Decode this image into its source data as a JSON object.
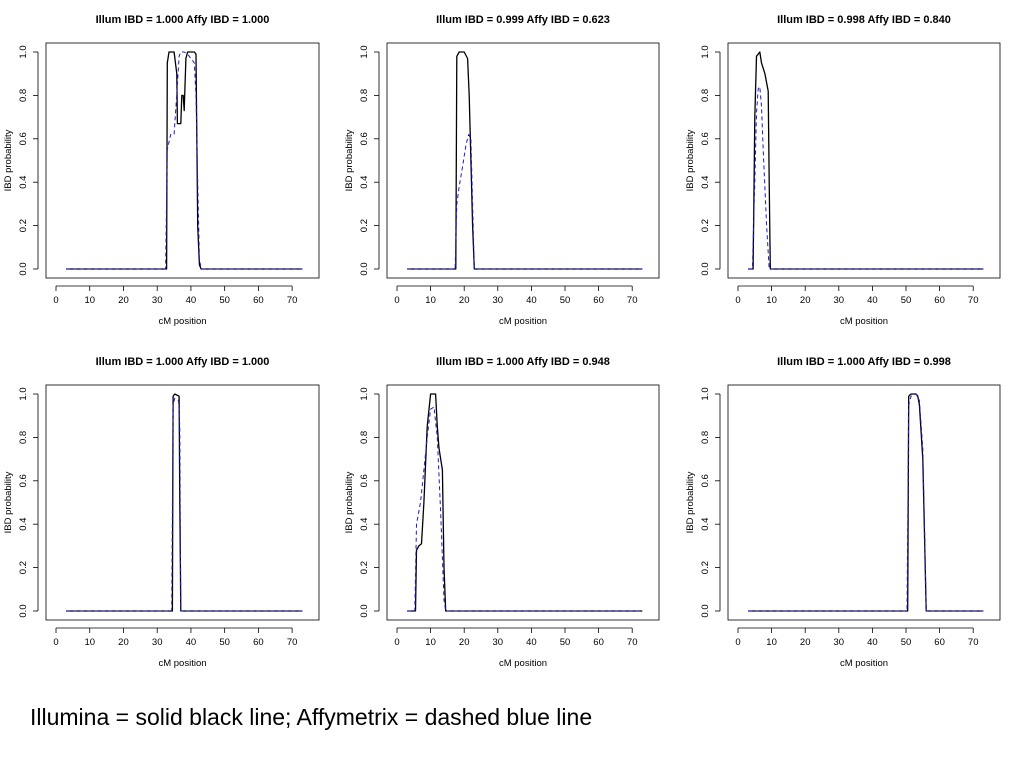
{
  "caption": "Illumina = solid black line; Affymetrix = dashed blue line",
  "colors": {
    "illumina": "#000000",
    "affymetrix": "#1a1ad6",
    "axis": "#000000"
  },
  "chart_data": [
    {
      "type": "line",
      "title": "Illum IBD = 1.000  Affy IBD = 1.000",
      "xlabel": "cM position",
      "ylabel": "IBD probability",
      "xlim": [
        0,
        75
      ],
      "ylim": [
        0,
        1
      ],
      "xticks": [
        0,
        10,
        20,
        30,
        40,
        50,
        60,
        70
      ],
      "yticks": [
        0.0,
        0.2,
        0.4,
        0.6,
        0.8,
        1.0
      ],
      "series": [
        {
          "style": "solid",
          "color": "#000000",
          "x": [
            3,
            32.8,
            33,
            33.5,
            35,
            35.8,
            36,
            37,
            37.3,
            37.7,
            38,
            38.5,
            39,
            40,
            41,
            41.5,
            42,
            42.5,
            43,
            73
          ],
          "y": [
            0,
            0,
            0.95,
            1,
            1,
            0.9,
            0.67,
            0.67,
            0.8,
            0.8,
            0.73,
            0.97,
            1,
            1,
            1,
            0.99,
            0.2,
            0.02,
            0,
            0
          ]
        },
        {
          "style": "dashed",
          "color": "#1a1ad6",
          "x": [
            3,
            32.5,
            33,
            34,
            35,
            36,
            36.5,
            37,
            38,
            39,
            40,
            41,
            41.5,
            42,
            42.5,
            43,
            73
          ],
          "y": [
            0,
            0,
            0.55,
            0.62,
            0.62,
            0.85,
            0.98,
            1,
            1,
            0.99,
            0.97,
            0.95,
            0.8,
            0.4,
            0.05,
            0,
            0
          ]
        }
      ]
    },
    {
      "type": "line",
      "title": "Illum IBD = 0.999  Affy IBD = 0.623",
      "xlabel": "cM position",
      "ylabel": "IBD probability",
      "xlim": [
        0,
        75
      ],
      "ylim": [
        0,
        1
      ],
      "xticks": [
        0,
        10,
        20,
        30,
        40,
        50,
        60,
        70
      ],
      "yticks": [
        0.0,
        0.2,
        0.4,
        0.6,
        0.8,
        1.0
      ],
      "series": [
        {
          "style": "solid",
          "color": "#000000",
          "x": [
            3,
            17.5,
            17.8,
            18.5,
            20,
            21,
            21.5,
            22,
            22.5,
            23,
            73
          ],
          "y": [
            0,
            0,
            0.98,
            1,
            1,
            0.97,
            0.8,
            0.5,
            0.2,
            0,
            0
          ]
        },
        {
          "style": "dashed",
          "color": "#1a1ad6",
          "x": [
            3,
            17.3,
            17.8,
            18.5,
            19.5,
            20.5,
            21.3,
            22,
            22.5,
            23,
            73
          ],
          "y": [
            0,
            0,
            0.3,
            0.38,
            0.47,
            0.57,
            0.62,
            0.6,
            0.3,
            0,
            0
          ]
        }
      ]
    },
    {
      "type": "line",
      "title": "Illum IBD = 0.998  Affy IBD = 0.840",
      "xlabel": "cM position",
      "ylabel": "IBD probability",
      "xlim": [
        0,
        75
      ],
      "ylim": [
        0,
        1
      ],
      "xticks": [
        0,
        10,
        20,
        30,
        40,
        50,
        60,
        70
      ],
      "yticks": [
        0.0,
        0.2,
        0.4,
        0.6,
        0.8,
        1.0
      ],
      "series": [
        {
          "style": "solid",
          "color": "#000000",
          "x": [
            3,
            4.5,
            5,
            5.5,
            6.5,
            7,
            8,
            9,
            9.3,
            9.6,
            73
          ],
          "y": [
            0,
            0,
            0.7,
            0.98,
            1,
            0.95,
            0.9,
            0.82,
            0.4,
            0,
            0
          ]
        },
        {
          "style": "dashed",
          "color": "#1a1ad6",
          "x": [
            3,
            4.3,
            5,
            5.5,
            6,
            6.5,
            7,
            7.5,
            8.5,
            9.3,
            73
          ],
          "y": [
            0,
            0,
            0.4,
            0.72,
            0.83,
            0.84,
            0.75,
            0.55,
            0.2,
            0,
            0
          ]
        }
      ]
    },
    {
      "type": "line",
      "title": "Illum IBD = 1.000  Affy IBD = 1.000",
      "xlabel": "cM position",
      "ylabel": "IBD probability",
      "xlim": [
        0,
        75
      ],
      "ylim": [
        0,
        1
      ],
      "xticks": [
        0,
        10,
        20,
        30,
        40,
        50,
        60,
        70
      ],
      "yticks": [
        0.0,
        0.2,
        0.4,
        0.6,
        0.8,
        1.0
      ],
      "series": [
        {
          "style": "solid",
          "color": "#000000",
          "x": [
            3,
            34.5,
            34.7,
            35.2,
            36.5,
            36.7,
            37,
            73
          ],
          "y": [
            0,
            0,
            0.99,
            1,
            0.99,
            0.5,
            0,
            0
          ]
        },
        {
          "style": "dashed",
          "color": "#1a1ad6",
          "x": [
            3,
            34.3,
            34.7,
            35.2,
            36.3,
            36.7,
            37,
            73
          ],
          "y": [
            0,
            0,
            0.95,
            0.98,
            0.97,
            0.85,
            0,
            0
          ]
        }
      ]
    },
    {
      "type": "line",
      "title": "Illum IBD = 1.000  Affy IBD = 0.948",
      "xlabel": "cM position",
      "ylabel": "IBD probability",
      "xlim": [
        0,
        75
      ],
      "ylim": [
        0,
        1
      ],
      "xticks": [
        0,
        10,
        20,
        30,
        40,
        50,
        60,
        70
      ],
      "yticks": [
        0.0,
        0.2,
        0.4,
        0.6,
        0.8,
        1.0
      ],
      "series": [
        {
          "style": "solid",
          "color": "#000000",
          "x": [
            3,
            5.5,
            5.8,
            6.5,
            7.3,
            8,
            9,
            10,
            11.5,
            12,
            12.5,
            13.5,
            14,
            14.5,
            73
          ],
          "y": [
            0,
            0,
            0.28,
            0.3,
            0.31,
            0.5,
            0.85,
            1,
            1,
            0.85,
            0.75,
            0.65,
            0.2,
            0,
            0
          ]
        },
        {
          "style": "dashed",
          "color": "#1a1ad6",
          "x": [
            3,
            5.3,
            5.8,
            7,
            8,
            9,
            10,
            11,
            12,
            13,
            14,
            14.5,
            73
          ],
          "y": [
            0,
            0,
            0.4,
            0.5,
            0.65,
            0.8,
            0.93,
            0.94,
            0.8,
            0.45,
            0.05,
            0,
            0
          ]
        }
      ]
    },
    {
      "type": "line",
      "title": "Illum IBD = 1.000  Affy IBD = 0.998",
      "xlabel": "cM position",
      "ylabel": "IBD probability",
      "xlim": [
        0,
        75
      ],
      "ylim": [
        0,
        1
      ],
      "xticks": [
        0,
        10,
        20,
        30,
        40,
        50,
        60,
        70
      ],
      "yticks": [
        0.0,
        0.2,
        0.4,
        0.6,
        0.8,
        1.0
      ],
      "series": [
        {
          "style": "solid",
          "color": "#000000",
          "x": [
            3,
            50.5,
            50.8,
            51.5,
            53,
            53.5,
            54,
            55,
            55.5,
            56,
            73
          ],
          "y": [
            0,
            0,
            0.99,
            1,
            1,
            0.99,
            0.95,
            0.7,
            0.35,
            0,
            0
          ]
        },
        {
          "style": "dashed",
          "color": "#1a1ad6",
          "x": [
            3,
            50.3,
            50.8,
            51.5,
            53,
            54,
            55,
            55.5,
            56,
            73
          ],
          "y": [
            0,
            0,
            0.95,
            0.99,
            1,
            0.97,
            0.75,
            0.4,
            0,
            0
          ]
        }
      ]
    }
  ]
}
